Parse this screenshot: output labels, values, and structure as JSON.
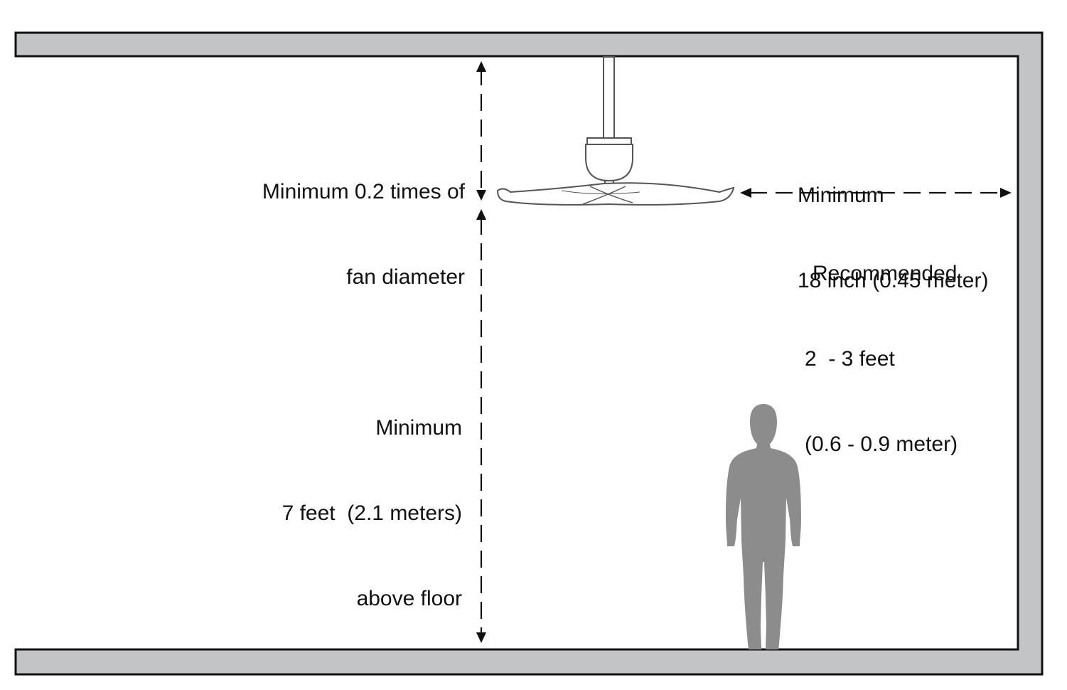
{
  "colors": {
    "structure": "#c3c4c6",
    "outline": "#111111",
    "human": "#8c8c8c",
    "fan_line": "#555555"
  },
  "labels": {
    "top_clearance": [
      "Minimum 0.2 times of",
      "fan diameter"
    ],
    "wall_clearance": [
      "Minimum",
      "18 inch (0.45 meter)"
    ],
    "recommended": [
      "Recommended",
      "2  - 3 feet",
      "(0.6 - 0.9 meter)"
    ],
    "floor_clearance": [
      "Minimum",
      "7 feet  (2.1 meters)",
      "above floor"
    ]
  },
  "icons": {
    "fan": "ceiling-fan-icon",
    "person": "human-silhouette-icon"
  }
}
